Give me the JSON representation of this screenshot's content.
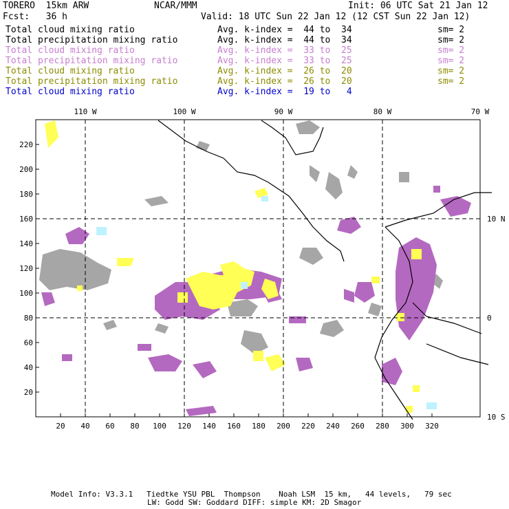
{
  "header": {
    "model": "TORERO  15km ARW",
    "center": "NCAR/MMM",
    "init": "Init: 06 UTC Sat 21 Jan 12",
    "fcst": "Fcst:   36 h",
    "valid": "Valid: 18 UTC Sun 22 Jan 12 (12 CST Sun 22 Jan 12)"
  },
  "legend": [
    {
      "field": "Total cloud mixing ratio",
      "index": "Avg. k-index =  44 to  34",
      "sm": "sm= 2",
      "color": "#000000"
    },
    {
      "field": "Total precipitation mixing ratio",
      "index": "Avg. k-index =  44 to  34",
      "sm": "sm= 2",
      "color": "#000000"
    },
    {
      "field": "Total cloud mixing ratio",
      "index": "Avg. k-index =  33 to  25",
      "sm": "sm= 2",
      "color": "#c77dd0"
    },
    {
      "field": "Total precipitation mixing ratio",
      "index": "Avg. k-index =  33 to  25",
      "sm": "sm= 2",
      "color": "#c77dd0"
    },
    {
      "field": "Total cloud mixing ratio",
      "index": "Avg. k-index =  26 to  20",
      "sm": "sm= 2",
      "color": "#8c8c00"
    },
    {
      "field": "Total precipitation mixing ratio",
      "index": "Avg. k-index =  26 to  20",
      "sm": "sm= 2",
      "color": "#8c8c00"
    },
    {
      "field": "Total cloud mixing ratio",
      "index": "Avg. k-index =  19 to   4",
      "sm": "",
      "color": "#0000cc"
    }
  ],
  "map": {
    "lon_labels": [
      "110 W",
      "100 W",
      "90 W",
      "80 W",
      "70 W"
    ],
    "lat_labels": [
      "10 N",
      "0",
      "10 S"
    ],
    "x_ticks": [
      "20",
      "40",
      "60",
      "80",
      "100",
      "120",
      "140",
      "160",
      "180",
      "200",
      "220",
      "240",
      "260",
      "280",
      "300",
      "320"
    ],
    "y_ticks": [
      "20",
      "40",
      "60",
      "80",
      "100",
      "120",
      "140",
      "160",
      "180",
      "200",
      "220"
    ],
    "colors": {
      "gray": "#a6a6a6",
      "purple": "#b469c0",
      "yellow": "#ffff55",
      "cyan": "#bff2ff",
      "coast": "#000000"
    }
  },
  "footer": {
    "line1": "Model Info: V3.3.1   Tiedtke YSU PBL  Thompson    Noah LSM  15 km,   44 levels,   79 sec",
    "line2": "LW: Godd SW: Goddard DIFF: simple KM: 2D Smagor"
  }
}
